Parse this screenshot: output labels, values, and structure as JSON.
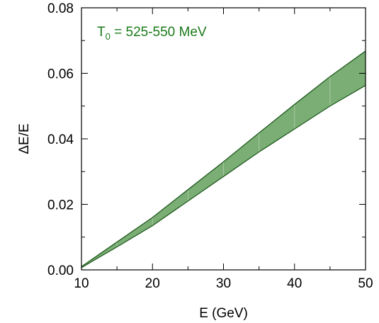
{
  "chart_data": {
    "type": "area",
    "xlabel": "E (GeV)",
    "ylabel": "ΔE/E",
    "xlim": [
      10,
      50
    ],
    "ylim": [
      0,
      0.08
    ],
    "x_ticks": [
      10,
      20,
      30,
      40,
      50
    ],
    "x_tick_labels": [
      "10",
      "20",
      "30",
      "40",
      "50"
    ],
    "y_ticks": [
      0,
      0.02,
      0.04,
      0.06,
      0.08
    ],
    "y_tick_labels": [
      "0.00",
      "0.02",
      "0.04",
      "0.06",
      "0.08"
    ],
    "grid": false,
    "annotation": {
      "main": "T",
      "subscript": "0",
      "rest": " = 525-550 MeV",
      "position": "top-left"
    },
    "band_color": "#7aae74",
    "band_edge_color": "#1f5a1f",
    "annotation_color": "#1b7a1b",
    "series": [
      {
        "x": [
          10,
          15,
          20,
          25,
          30,
          35,
          40,
          45,
          50
        ],
        "lower": [
          0.0007,
          0.007,
          0.0135,
          0.021,
          0.0285,
          0.036,
          0.043,
          0.05,
          0.0563
        ],
        "upper": [
          0.001,
          0.0085,
          0.016,
          0.0245,
          0.033,
          0.0418,
          0.0505,
          0.059,
          0.0668
        ]
      }
    ]
  }
}
